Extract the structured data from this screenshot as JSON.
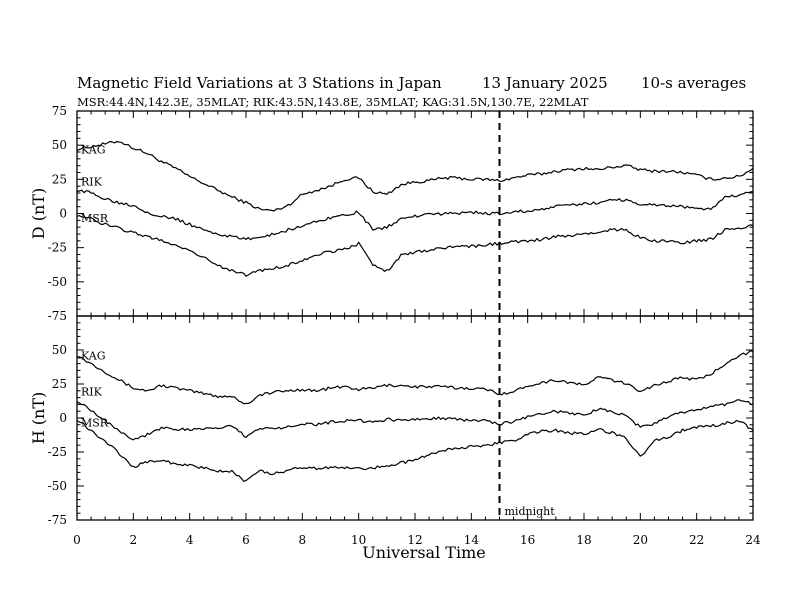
{
  "header": {
    "title": "Magnetic Field Variations at 3 Stations in Japan",
    "date": "13 January 2025",
    "averaging": "10-s averages",
    "stations": "MSR:44.4N,142.3E, 35MLAT;  RIK:43.5N,143.8E, 35MLAT;  KAG:31.5N,130.7E, 22MLAT"
  },
  "chart_data": [
    {
      "type": "line",
      "panel": "top",
      "ylabel": "D (nT)",
      "xlabel": "",
      "xlim": [
        0,
        24
      ],
      "ylim": [
        -75,
        75
      ],
      "yticks": [
        75,
        50,
        25,
        0,
        -25,
        -50,
        -75
      ],
      "x": [
        0,
        0.5,
        1,
        1.5,
        2,
        2.5,
        3,
        3.5,
        4,
        4.5,
        5,
        5.5,
        6,
        6.5,
        7,
        7.5,
        8,
        8.5,
        9,
        9.5,
        10,
        10.5,
        11,
        11.5,
        12,
        12.5,
        13,
        13.5,
        14,
        14.5,
        15,
        15.5,
        16,
        16.5,
        17,
        17.5,
        18,
        18.5,
        19,
        19.5,
        20,
        20.5,
        21,
        21.5,
        22,
        22.5,
        23,
        23.5,
        24
      ],
      "series": [
        {
          "name": "KAG",
          "values": [
            47,
            49,
            51,
            53,
            48,
            44,
            38,
            33,
            27,
            22,
            17,
            12,
            8,
            3,
            2,
            6,
            14,
            17,
            20,
            25,
            26,
            16,
            14,
            21,
            23,
            24,
            26,
            26,
            25,
            25,
            24,
            26,
            28,
            29,
            31,
            32,
            33,
            32,
            34,
            35,
            32,
            31,
            31,
            30,
            28,
            25,
            26,
            27,
            33
          ]
        },
        {
          "name": "RIK",
          "values": [
            17,
            15,
            11,
            8,
            6,
            1,
            -2,
            -4,
            -8,
            -12,
            -15,
            -17,
            -19,
            -17,
            -15,
            -12,
            -9,
            -6,
            -3,
            -1,
            1,
            -12,
            -10,
            -4,
            -2,
            -1,
            0,
            0,
            1,
            0,
            0,
            1,
            2,
            3,
            5,
            6,
            7,
            8,
            10,
            10,
            7,
            6,
            6,
            5,
            4,
            3,
            12,
            13,
            16
          ]
        },
        {
          "name": "MSR",
          "values": [
            -1,
            -4,
            -8,
            -11,
            -14,
            -17,
            -20,
            -23,
            -27,
            -32,
            -38,
            -42,
            -45,
            -42,
            -40,
            -38,
            -34,
            -30,
            -28,
            -26,
            -22,
            -38,
            -42,
            -31,
            -28,
            -27,
            -25,
            -24,
            -24,
            -23,
            -22,
            -21,
            -20,
            -19,
            -17,
            -16,
            -15,
            -14,
            -12,
            -12,
            -18,
            -20,
            -20,
            -21,
            -20,
            -19,
            -12,
            -11,
            -9
          ]
        }
      ]
    },
    {
      "type": "line",
      "panel": "bottom",
      "ylabel": "H (nT)",
      "xlabel": "Universal Time",
      "xlim": [
        0,
        24
      ],
      "ylim": [
        -75,
        75
      ],
      "yticks": [
        50,
        25,
        0,
        -25,
        -50,
        -75
      ],
      "xticks": [
        0,
        2,
        4,
        6,
        8,
        10,
        12,
        14,
        16,
        18,
        20,
        22,
        24
      ],
      "annotation": {
        "x": 15,
        "label": "midnight"
      },
      "x": [
        0,
        0.5,
        1,
        1.5,
        2,
        2.5,
        3,
        3.5,
        4,
        4.5,
        5,
        5.5,
        6,
        6.5,
        7,
        7.5,
        8,
        8.5,
        9,
        9.5,
        10,
        10.5,
        11,
        11.5,
        12,
        12.5,
        13,
        13.5,
        14,
        14.5,
        15,
        15.5,
        16,
        16.5,
        17,
        17.5,
        18,
        18.5,
        19,
        19.5,
        20,
        20.5,
        21,
        21.5,
        22,
        22.5,
        23,
        23.5,
        24
      ],
      "series": [
        {
          "name": "KAG",
          "values": [
            46,
            40,
            34,
            28,
            22,
            20,
            24,
            22,
            20,
            18,
            16,
            16,
            10,
            17,
            19,
            20,
            21,
            20,
            22,
            23,
            21,
            22,
            24,
            24,
            23,
            23,
            23,
            22,
            22,
            21,
            18,
            19,
            24,
            26,
            28,
            26,
            24,
            30,
            28,
            25,
            20,
            24,
            27,
            30,
            28,
            32,
            40,
            46,
            49
          ]
        },
        {
          "name": "RIK",
          "values": [
            13,
            6,
            -2,
            -9,
            -16,
            -12,
            -7,
            -8,
            -9,
            -8,
            -7,
            -6,
            -14,
            -7,
            -8,
            -6,
            -4,
            -5,
            -3,
            -2,
            -2,
            -3,
            -1,
            -2,
            -1,
            0,
            0,
            -1,
            -2,
            -2,
            -4,
            -3,
            1,
            3,
            5,
            3,
            2,
            7,
            4,
            2,
            -7,
            -4,
            1,
            4,
            6,
            8,
            10,
            14,
            10
          ]
        },
        {
          "name": "MSR",
          "values": [
            -1,
            -9,
            -17,
            -26,
            -36,
            -32,
            -31,
            -34,
            -35,
            -37,
            -39,
            -39,
            -47,
            -39,
            -41,
            -39,
            -36,
            -37,
            -36,
            -37,
            -37,
            -37,
            -35,
            -33,
            -31,
            -27,
            -24,
            -22,
            -21,
            -21,
            -18,
            -17,
            -12,
            -10,
            -9,
            -11,
            -12,
            -8,
            -11,
            -15,
            -29,
            -17,
            -14,
            -9,
            -7,
            -6,
            -4,
            -2,
            -9
          ]
        }
      ]
    }
  ]
}
